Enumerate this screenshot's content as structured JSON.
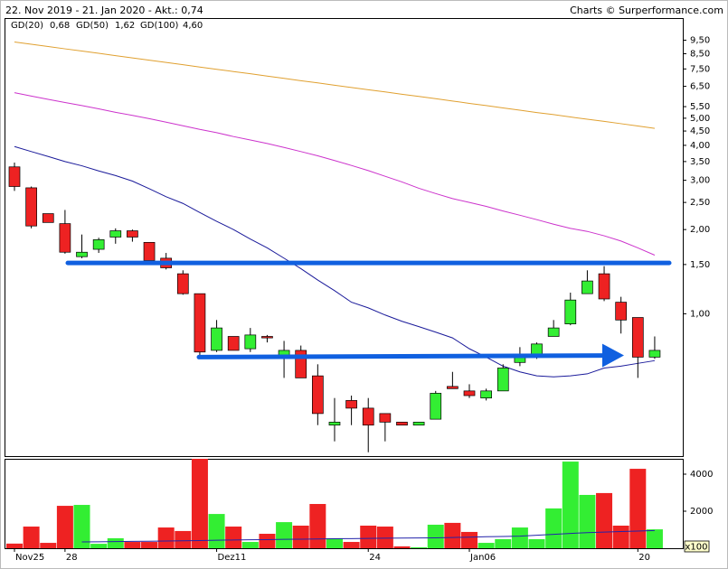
{
  "chart_data": [
    {
      "type": "candlestick",
      "title": "22. Nov 2019 - 21. Jan 2020 - Akt.: 0,74",
      "source": "Charts © Surperformance.com",
      "categories": [
        "Nov25",
        null,
        null,
        "28",
        null,
        null,
        null,
        null,
        null,
        null,
        null,
        null,
        "Dez11",
        null,
        null,
        null,
        null,
        null,
        null,
        null,
        null,
        "24",
        null,
        null,
        null,
        null,
        null,
        "Jan06",
        null,
        null,
        null,
        null,
        null,
        null,
        null,
        null,
        null,
        "20",
        null
      ],
      "open": [
        3.35,
        2.82,
        2.28,
        2.1,
        1.6,
        1.7,
        1.88,
        1.98,
        1.8,
        1.58,
        1.39,
        1.18,
        0.74,
        0.83,
        0.75,
        0.83,
        0.7,
        0.74,
        0.6,
        0.4,
        0.49,
        0.46,
        0.44,
        0.41,
        0.4,
        0.42,
        0.55,
        0.53,
        0.5,
        0.53,
        0.67,
        0.7,
        0.83,
        0.92,
        1.18,
        1.39,
        1.1,
        0.97,
        0.7
      ],
      "high": [
        3.47,
        2.85,
        2.28,
        2.35,
        1.92,
        1.87,
        2.02,
        2.0,
        1.8,
        1.65,
        1.43,
        1.18,
        0.95,
        0.83,
        0.89,
        0.84,
        0.8,
        0.77,
        0.66,
        0.5,
        0.51,
        0.5,
        0.44,
        0.41,
        0.41,
        0.53,
        0.62,
        0.56,
        0.54,
        0.66,
        0.76,
        0.79,
        0.95,
        1.19,
        1.43,
        1.48,
        1.15,
        0.97,
        0.83
      ],
      "low": [
        2.75,
        2.02,
        2.12,
        1.64,
        1.58,
        1.65,
        1.78,
        1.81,
        1.55,
        1.44,
        1.17,
        0.71,
        0.73,
        0.74,
        0.73,
        0.79,
        0.59,
        0.59,
        0.4,
        0.35,
        0.4,
        0.32,
        0.35,
        0.4,
        0.4,
        0.42,
        0.54,
        0.5,
        0.49,
        0.53,
        0.65,
        0.69,
        0.83,
        0.91,
        1.18,
        1.11,
        0.85,
        0.59,
        0.69
      ],
      "close": [
        2.85,
        2.06,
        2.12,
        1.66,
        1.66,
        1.84,
        1.98,
        1.88,
        1.55,
        1.46,
        1.18,
        0.73,
        0.89,
        0.74,
        0.84,
        0.82,
        0.74,
        0.59,
        0.44,
        0.41,
        0.46,
        0.4,
        0.41,
        0.4,
        0.41,
        0.52,
        0.54,
        0.51,
        0.53,
        0.64,
        0.71,
        0.78,
        0.89,
        1.12,
        1.31,
        1.13,
        0.95,
        0.7,
        0.74
      ],
      "up_color": "#33ee33",
      "down_color": "#ee2222",
      "log_scale": true,
      "ylim": [
        0.31,
        11.4
      ],
      "yticks": [
        {
          "value": 9.5,
          "label": "9,50"
        },
        {
          "value": 8.5,
          "label": "8,50"
        },
        {
          "value": 7.5,
          "label": "7,50"
        },
        {
          "value": 6.5,
          "label": "6,50"
        },
        {
          "value": 5.5,
          "label": "5,50"
        },
        {
          "value": 5,
          "label": "5,00"
        },
        {
          "value": 4.5,
          "label": "4,50"
        },
        {
          "value": 4,
          "label": "4,00"
        },
        {
          "value": 3.5,
          "label": "3,50"
        },
        {
          "value": 3,
          "label": "3,00"
        },
        {
          "value": 2.5,
          "label": "2,50"
        },
        {
          "value": 2,
          "label": "2,00"
        },
        {
          "value": 1.5,
          "label": "1,50"
        },
        {
          "value": 1,
          "label": "1,00"
        }
      ],
      "series": [
        {
          "name": "GD(20)",
          "color": "#1a1a9a",
          "last_value_label": "0,68",
          "values": [
            3.96,
            3.8,
            3.65,
            3.5,
            3.38,
            3.24,
            3.12,
            2.98,
            2.8,
            2.62,
            2.48,
            2.3,
            2.14,
            2.0,
            1.85,
            1.72,
            1.58,
            1.45,
            1.32,
            1.21,
            1.1,
            1.05,
            0.99,
            0.94,
            0.9,
            0.86,
            0.82,
            0.75,
            0.7,
            0.65,
            0.62,
            0.6,
            0.595,
            0.6,
            0.61,
            0.64,
            0.65,
            0.665,
            0.68
          ]
        },
        {
          "name": "GD(50)",
          "color": "#cc33cc",
          "last_value_label": "1,62",
          "values": [
            6.17,
            6.0,
            5.84,
            5.69,
            5.55,
            5.4,
            5.25,
            5.12,
            4.98,
            4.84,
            4.7,
            4.56,
            4.44,
            4.3,
            4.18,
            4.06,
            3.93,
            3.8,
            3.67,
            3.53,
            3.39,
            3.25,
            3.1,
            2.96,
            2.81,
            2.69,
            2.58,
            2.5,
            2.42,
            2.33,
            2.25,
            2.17,
            2.09,
            2.02,
            1.97,
            1.9,
            1.82,
            1.72,
            1.62
          ]
        },
        {
          "name": "GD(100)",
          "color": "#e0a030",
          "last_value_label": "4,60",
          "values": [
            9.36,
            9.19,
            9.02,
            8.85,
            8.69,
            8.53,
            8.37,
            8.21,
            8.06,
            7.91,
            7.77,
            7.62,
            7.48,
            7.34,
            7.21,
            7.07,
            6.94,
            6.81,
            6.69,
            6.56,
            6.44,
            6.32,
            6.21,
            6.09,
            5.98,
            5.87,
            5.76,
            5.65,
            5.55,
            5.44,
            5.34,
            5.24,
            5.15,
            5.05,
            4.96,
            4.87,
            4.78,
            4.69,
            4.6
          ]
        }
      ],
      "trend_lines": [
        {
          "color": "#1060e0",
          "values": [
            1.52,
            1.52
          ],
          "arrow": false
        },
        {
          "color": "#1060e0",
          "values": [
            0.7,
            0.71
          ],
          "arrow": true
        }
      ]
    },
    {
      "type": "bar",
      "values": [
        250,
        1170,
        290,
        2290,
        2340,
        240,
        540,
        340,
        340,
        1120,
        930,
        4830,
        1850,
        1170,
        340,
        780,
        1410,
        1220,
        2390,
        540,
        340,
        1220,
        1170,
        100,
        50,
        1270,
        1370,
        880,
        290,
        490,
        1120,
        490,
        2150,
        4680,
        2880,
        2980,
        1220,
        4290,
        1020
      ],
      "ma_values": [
        null,
        null,
        null,
        null,
        340,
        350,
        360,
        370,
        380,
        390,
        400,
        415,
        430,
        445,
        455,
        465,
        480,
        490,
        500,
        510,
        520,
        530,
        540,
        550,
        555,
        560,
        580,
        600,
        620,
        635,
        650,
        700,
        750,
        800,
        840,
        870,
        900,
        930,
        960
      ],
      "ma_color": "#2222aa",
      "ylim": [
        0,
        4830
      ],
      "yticks": [
        2000,
        4000
      ],
      "unit_label": "x100"
    }
  ]
}
